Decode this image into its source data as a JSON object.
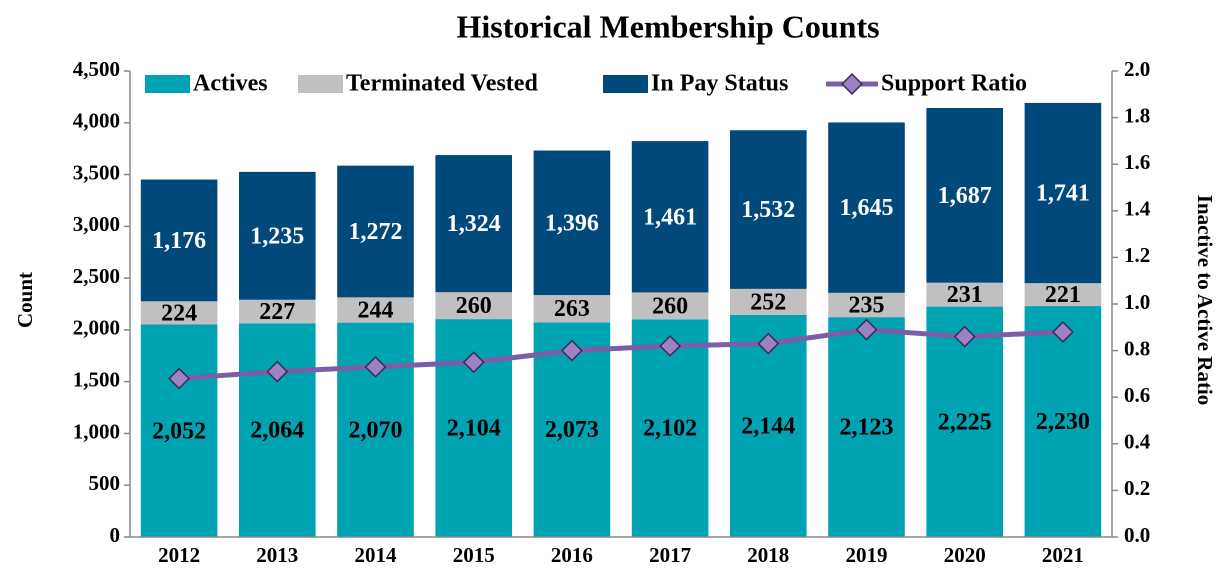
{
  "chart_data": {
    "type": "bar",
    "stacked": true,
    "title": "Historical Membership Counts",
    "y_label": "Count",
    "y2_label": "Inactive to Active Ratio",
    "categories": [
      "2012",
      "2013",
      "2014",
      "2015",
      "2016",
      "2017",
      "2018",
      "2019",
      "2020",
      "2021"
    ],
    "series": [
      {
        "name": "Actives",
        "color": "#00a3b1",
        "values": [
          2052,
          2064,
          2070,
          2104,
          2073,
          2102,
          2144,
          2123,
          2225,
          2230
        ],
        "value_labels": [
          "2,052",
          "2,064",
          "2,070",
          "2,104",
          "2,073",
          "2,102",
          "2,144",
          "2,123",
          "2,225",
          "2,230"
        ]
      },
      {
        "name": "Terminated Vested",
        "color": "#c0c0c0",
        "values": [
          224,
          227,
          244,
          260,
          263,
          260,
          252,
          235,
          231,
          221
        ]
      },
      {
        "name": "In Pay Status",
        "color": "#00497a",
        "values": [
          1176,
          1235,
          1272,
          1324,
          1396,
          1461,
          1532,
          1645,
          1687,
          1741
        ],
        "value_labels": [
          "1,176",
          "1,235",
          "1,272",
          "1,324",
          "1,396",
          "1,461",
          "1,532",
          "1,645",
          "1,687",
          "1,741"
        ]
      },
      {
        "name": "Support Ratio",
        "color": "#7b5ea7",
        "type": "line",
        "axis": "y2",
        "values": [
          0.68,
          0.71,
          0.73,
          0.75,
          0.8,
          0.82,
          0.83,
          0.89,
          0.86,
          0.88
        ]
      }
    ],
    "ylim": [
      0,
      4500
    ],
    "yticks": [
      0,
      500,
      {
        "value": 1000,
        "label": "1,000"
      },
      {
        "value": 1500,
        "label": "1,500"
      },
      {
        "value": 2000,
        "label": "2,000"
      },
      {
        "value": 2500,
        "label": "2,500"
      },
      {
        "value": 3000,
        "label": "3,000"
      },
      {
        "value": 3500,
        "label": "3,500"
      },
      {
        "value": 4000,
        "label": "4,000"
      },
      {
        "value": 4500,
        "label": "4,500"
      }
    ],
    "y2lim": [
      0,
      2
    ],
    "y2ticks": [
      {
        "value": 0,
        "label": "0.0"
      },
      0.2,
      0.4,
      0.6,
      0.8,
      {
        "value": 1,
        "label": "1.0"
      },
      1.2,
      1.4,
      1.6,
      1.8,
      {
        "value": 2,
        "label": "2.0"
      }
    ],
    "grid": false,
    "legend": "top"
  }
}
